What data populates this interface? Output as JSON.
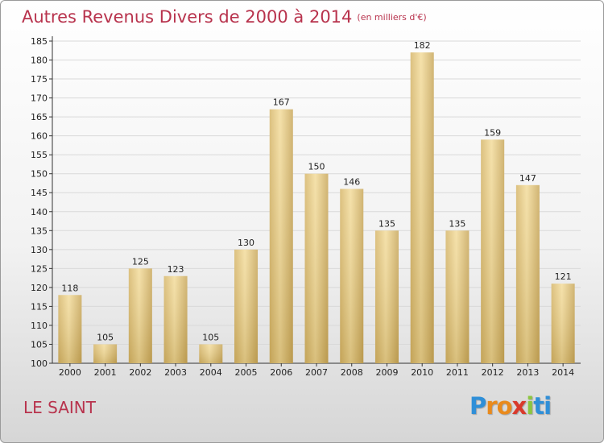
{
  "title": "Autres Revenus Divers de 2000 à 2014",
  "subtitle": "(en milliers d'€)",
  "place": "LE SAINT",
  "logo": {
    "letters": [
      "P",
      "r",
      "o",
      "x",
      "i",
      "t",
      "i"
    ],
    "colors": [
      "#2f8fd8",
      "#e98a1c",
      "#e98a1c",
      "#d93a2c",
      "#8cc63f",
      "#2f8fd8",
      "#2f8fd8"
    ]
  },
  "chart_data": {
    "type": "bar",
    "categories": [
      "2000",
      "2001",
      "2002",
      "2003",
      "2004",
      "2005",
      "2006",
      "2007",
      "2008",
      "2009",
      "2010",
      "2011",
      "2012",
      "2013",
      "2014"
    ],
    "values": [
      118,
      105,
      125,
      123,
      105,
      130,
      167,
      150,
      146,
      135,
      182,
      135,
      159,
      147,
      121
    ],
    "data_labels": [
      "118",
      "105",
      "125",
      "123",
      "105",
      "130",
      "167",
      "150",
      "146",
      "135",
      "182",
      "135",
      "159",
      "147",
      "121"
    ],
    "ylim": [
      100,
      185
    ],
    "yticks": [
      100,
      105,
      110,
      115,
      120,
      125,
      130,
      135,
      140,
      145,
      150,
      155,
      160,
      165,
      170,
      175,
      180,
      185
    ],
    "ytick_labels": [
      "100",
      "105",
      "110",
      "115",
      "120",
      "125",
      "130",
      "135",
      "140",
      "145",
      "150",
      "155",
      "160",
      "165",
      "170",
      "175",
      "180",
      "185"
    ],
    "grid": true,
    "bar_color": "#e8cc86"
  }
}
